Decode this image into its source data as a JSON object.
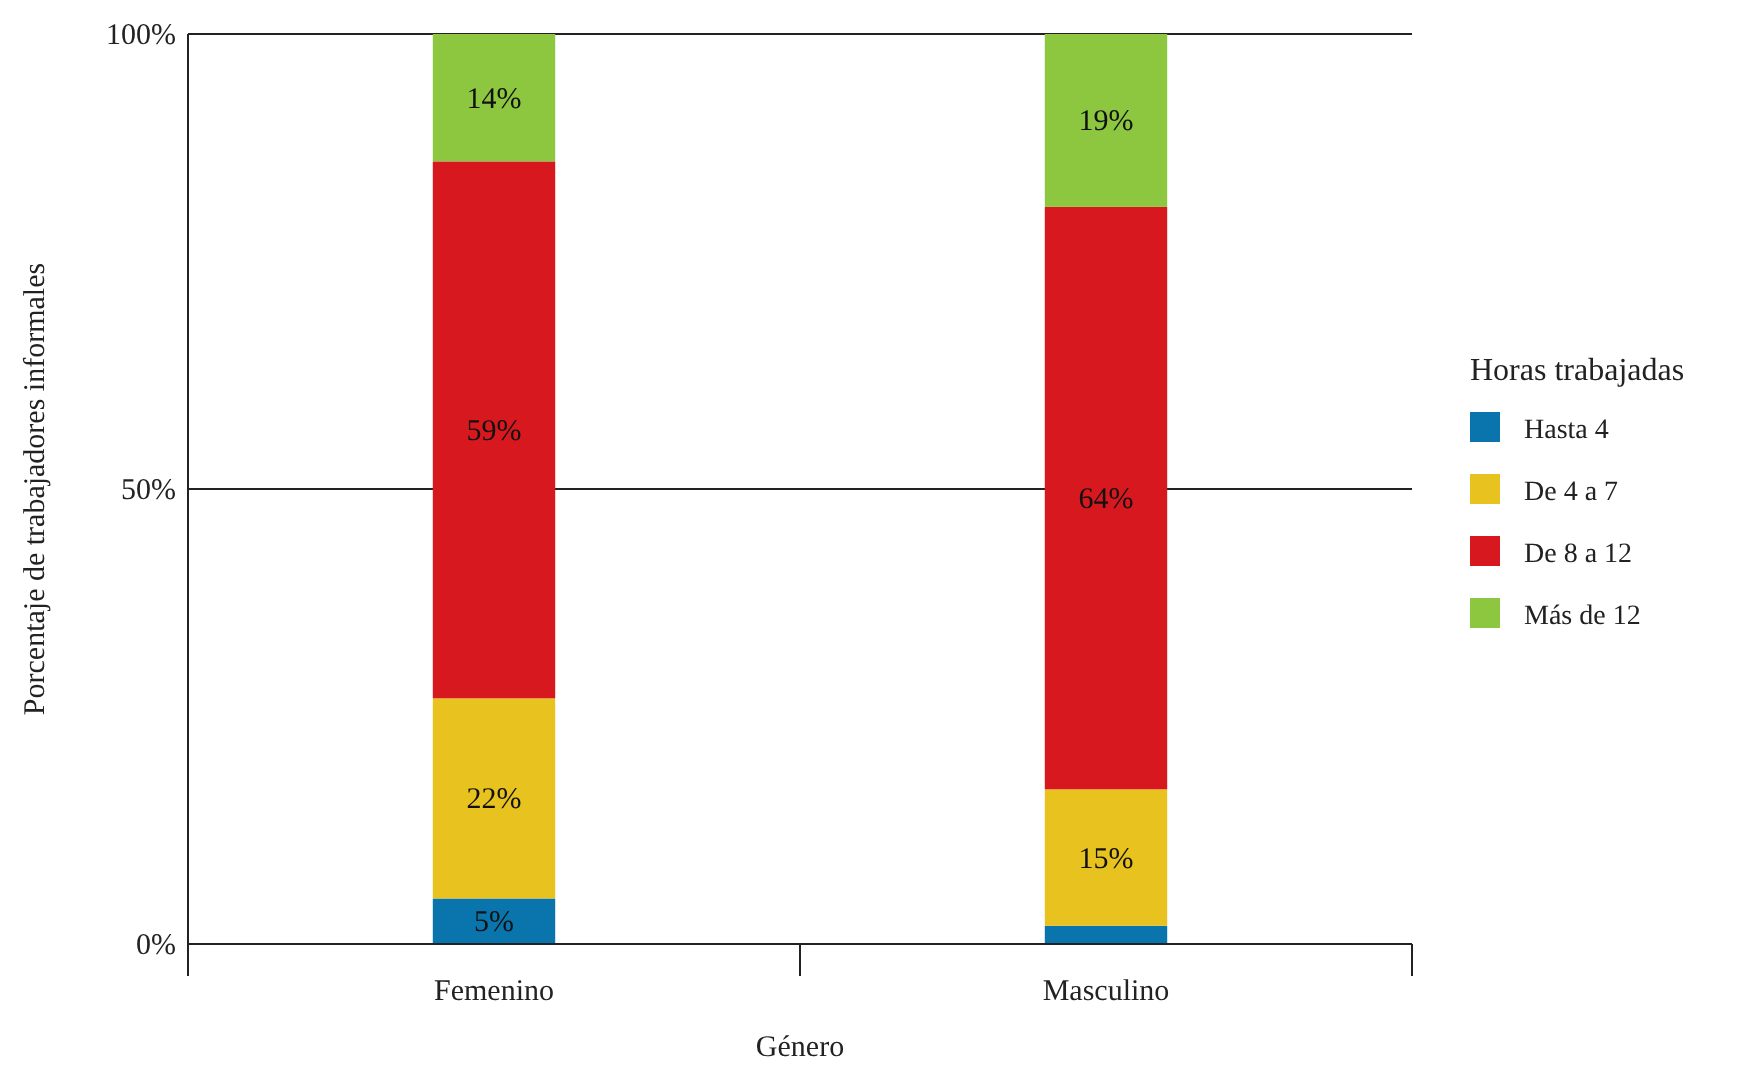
{
  "chart_data": {
    "type": "bar",
    "stacked": true,
    "xlabel": "Género",
    "ylabel": "Porcentaje de trabajadores informales",
    "legend_title": "Horas trabajadas",
    "legend": "right",
    "grid": "y",
    "categories": [
      "Femenino",
      "Masculino"
    ],
    "ylim": [
      0,
      100
    ],
    "yticks": [
      {
        "value": 0,
        "label": "0%"
      },
      {
        "value": 50,
        "label": "50%"
      },
      {
        "value": 100,
        "label": "100%"
      }
    ],
    "series": [
      {
        "name": "Hasta 4",
        "color": "#0a75ad",
        "values": [
          5,
          2
        ],
        "value_labels": [
          "5%",
          null
        ]
      },
      {
        "name": "De 4 a 7",
        "color": "#e8c21e",
        "values": [
          22,
          15
        ],
        "value_labels": [
          "22%",
          "15%"
        ]
      },
      {
        "name": "De 8 a 12",
        "color": "#d7191f",
        "values": [
          59,
          64
        ],
        "value_labels": [
          "59%",
          "64%"
        ]
      },
      {
        "name": "Más de 12",
        "color": "#8dc63f",
        "values": [
          14,
          19
        ],
        "value_labels": [
          "14%",
          "19%"
        ]
      }
    ]
  }
}
